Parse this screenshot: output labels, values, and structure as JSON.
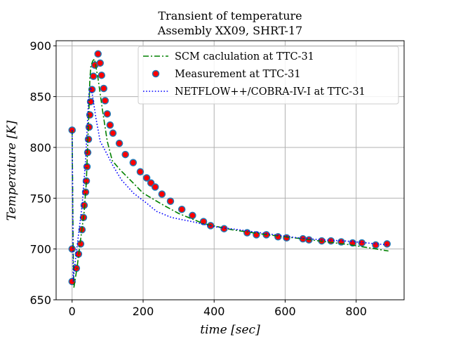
{
  "chart_data": {
    "type": "line",
    "title": "Transient of temperature",
    "subtitle": "Assembly XX09, SHRT-17",
    "xlabel_var": "time",
    "xlabel_unit": "[sec]",
    "ylabel_var": "Temperature",
    "ylabel_unit": "[K]",
    "xlim": [
      -45,
      935
    ],
    "ylim": [
      650,
      905
    ],
    "xticks": [
      0,
      200,
      400,
      600,
      800
    ],
    "yticks": [
      650,
      700,
      750,
      800,
      850,
      900
    ],
    "grid": true,
    "legend_position": "top-right",
    "series": [
      {
        "name": "SCM caclulation at TTC-31",
        "style": "dash-dot",
        "color": "#008000",
        "x": [
          0,
          3,
          5,
          14,
          25,
          34,
          40,
          47,
          50,
          53,
          58,
          63,
          73,
          85,
          99,
          113,
          135,
          172,
          200,
          253,
          300,
          370,
          450,
          550,
          650,
          786,
          891
        ],
        "y": [
          817,
          700,
          662,
          682,
          712,
          737,
          765,
          833,
          868,
          880,
          885,
          887,
          868,
          838,
          806,
          787,
          778,
          765,
          755,
          744,
          735,
          725,
          719,
          714,
          710,
          704,
          698
        ]
      },
      {
        "name": "Measurement at TTC-31",
        "style": "markers",
        "color": "#ff0000",
        "edge_color": "#1f77b4",
        "x": [
          0,
          0,
          0,
          12,
          18,
          24,
          28,
          32,
          34,
          38,
          40,
          42,
          44,
          46,
          48,
          50,
          52,
          56,
          60,
          64,
          73,
          79,
          83,
          89,
          93,
          99,
          107,
          115,
          133,
          150,
          172,
          192,
          210,
          222,
          234,
          253,
          277,
          309,
          339,
          370,
          390,
          428,
          493,
          519,
          547,
          580,
          604,
          650,
          667,
          703,
          729,
          758,
          790,
          816,
          855,
          887
        ],
        "y": [
          817,
          700,
          668,
          681,
          695,
          705,
          719,
          731,
          743,
          756,
          767,
          781,
          795,
          808,
          820,
          832,
          845,
          857,
          870,
          881,
          892,
          883,
          871,
          858,
          846,
          833,
          822,
          814,
          804,
          793,
          785,
          776,
          770,
          765,
          761,
          754,
          747,
          739,
          733,
          727,
          723,
          720,
          716,
          714,
          714,
          712,
          711,
          710,
          709,
          708,
          708,
          707,
          706,
          706,
          704,
          705
        ]
      },
      {
        "name": "NETFLOW++/COBRA-IV-I at TTC-31",
        "style": "dotted",
        "color": "#0000ff",
        "x": [
          0,
          3,
          8,
          14,
          28,
          38,
          44,
          47,
          53,
          58,
          67,
          79,
          93,
          115,
          139,
          173,
          210,
          238,
          280,
          337,
          400,
          469,
          550,
          634,
          700,
          766,
          830,
          889
        ],
        "y": [
          817,
          668,
          685,
          703,
          742,
          787,
          829,
          852,
          859,
          850,
          829,
          806,
          797,
          782,
          768,
          755,
          745,
          737,
          731,
          727,
          722,
          719,
          715,
          711,
          709,
          708,
          706,
          704
        ]
      }
    ]
  }
}
